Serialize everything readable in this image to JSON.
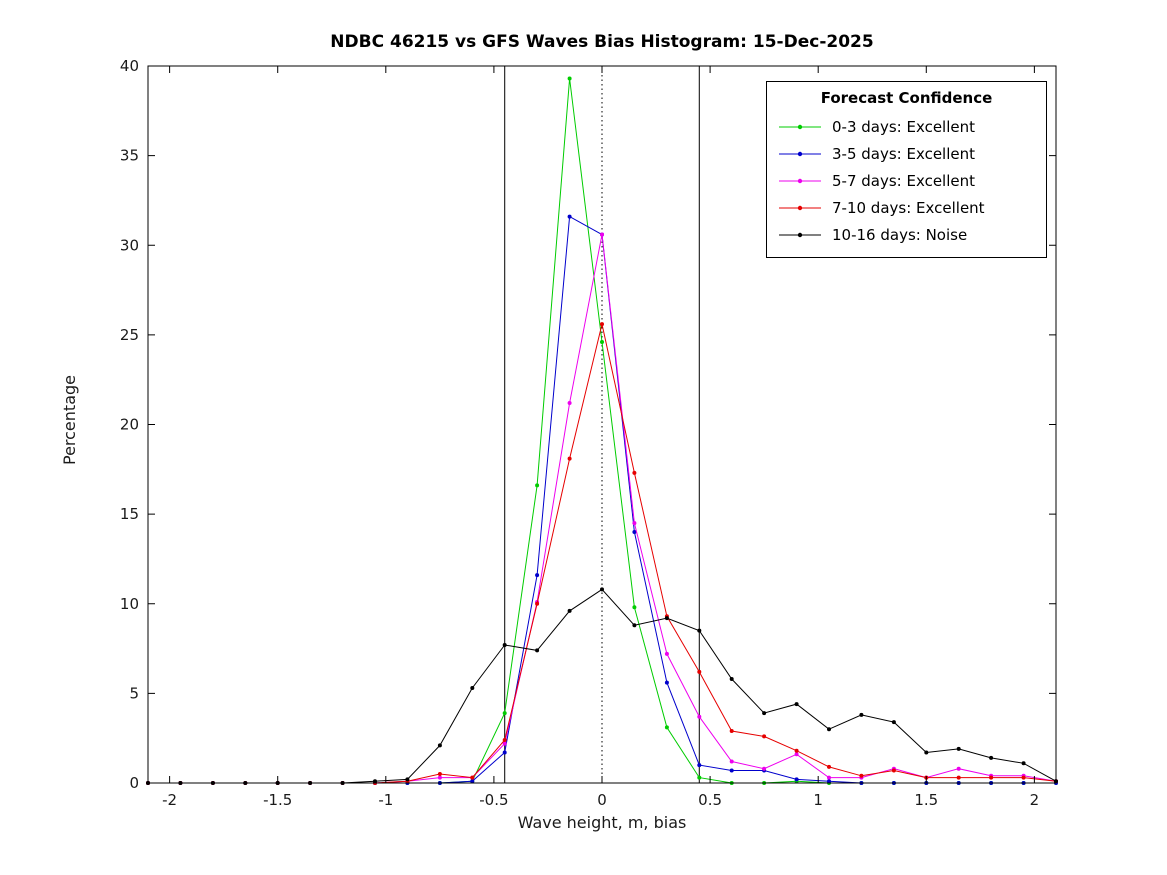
{
  "chart_data": {
    "type": "line",
    "title": "NDBC 46215 vs GFS Waves Bias Histogram: 15-Dec-2025",
    "xlabel": "Wave height, m, bias",
    "ylabel": "Percentage",
    "xlim": [
      -2.1,
      2.1
    ],
    "ylim": [
      0,
      40
    ],
    "xticks": [
      -2,
      -1.5,
      -1,
      -0.5,
      0,
      0.5,
      1,
      1.5,
      2
    ],
    "yticks": [
      0,
      5,
      10,
      15,
      20,
      25,
      30,
      35,
      40
    ],
    "grid": false,
    "legend": {
      "title": "Forecast Confidence",
      "position": "top-right"
    },
    "reference_lines": {
      "solid_vertical": [
        -0.45,
        0.45
      ],
      "dotted_vertical": [
        0
      ]
    },
    "x": [
      -2.1,
      -1.95,
      -1.8,
      -1.65,
      -1.5,
      -1.35,
      -1.2,
      -1.05,
      -0.9,
      -0.75,
      -0.6,
      -0.45,
      -0.3,
      -0.15,
      0,
      0.15,
      0.3,
      0.45,
      0.6,
      0.75,
      0.9,
      1.05,
      1.2,
      1.35,
      1.5,
      1.65,
      1.8,
      1.95,
      2.1
    ],
    "series": [
      {
        "name": "0-3 days: Excellent",
        "color": "#00cc00",
        "values": [
          0,
          0,
          0,
          0,
          0,
          0,
          0,
          0,
          0,
          0,
          0.1,
          3.9,
          16.6,
          39.3,
          24.6,
          9.8,
          3.1,
          0.3,
          0,
          0,
          0.1,
          0,
          0,
          0,
          0,
          0,
          0,
          0,
          0
        ]
      },
      {
        "name": "3-5 days: Excellent",
        "color": "#0000cc",
        "values": [
          0,
          0,
          0,
          0,
          0,
          0,
          0,
          0,
          0,
          0,
          0.1,
          1.7,
          11.6,
          31.6,
          30.6,
          14.0,
          5.6,
          1.0,
          0.7,
          0.7,
          0.2,
          0.1,
          0,
          0,
          0,
          0,
          0,
          0,
          0
        ]
      },
      {
        "name": "5-7 days: Excellent",
        "color": "#ee00ee",
        "values": [
          0,
          0,
          0,
          0,
          0,
          0,
          0,
          0,
          0.1,
          0.3,
          0.3,
          2.2,
          10.1,
          21.2,
          30.6,
          14.5,
          7.2,
          3.7,
          1.2,
          0.8,
          1.6,
          0.3,
          0.3,
          0.8,
          0.3,
          0.8,
          0.4,
          0.4,
          0.1
        ]
      },
      {
        "name": "7-10 days: Excellent",
        "color": "#e60000",
        "values": [
          0,
          0,
          0,
          0,
          0,
          0,
          0,
          0,
          0.1,
          0.5,
          0.3,
          2.4,
          10.0,
          18.1,
          25.6,
          17.3,
          9.3,
          6.2,
          2.9,
          2.6,
          1.8,
          0.9,
          0.4,
          0.7,
          0.3,
          0.3,
          0.3,
          0.3,
          0.1
        ]
      },
      {
        "name": "10-16 days: Noise",
        "color": "#000000",
        "values": [
          0,
          0,
          0,
          0,
          0,
          0,
          0,
          0.1,
          0.2,
          2.1,
          5.3,
          7.7,
          7.4,
          9.6,
          10.8,
          8.8,
          9.2,
          8.5,
          5.8,
          3.9,
          4.4,
          3.0,
          3.8,
          3.4,
          1.7,
          1.9,
          1.4,
          1.1,
          0.1
        ]
      }
    ]
  }
}
